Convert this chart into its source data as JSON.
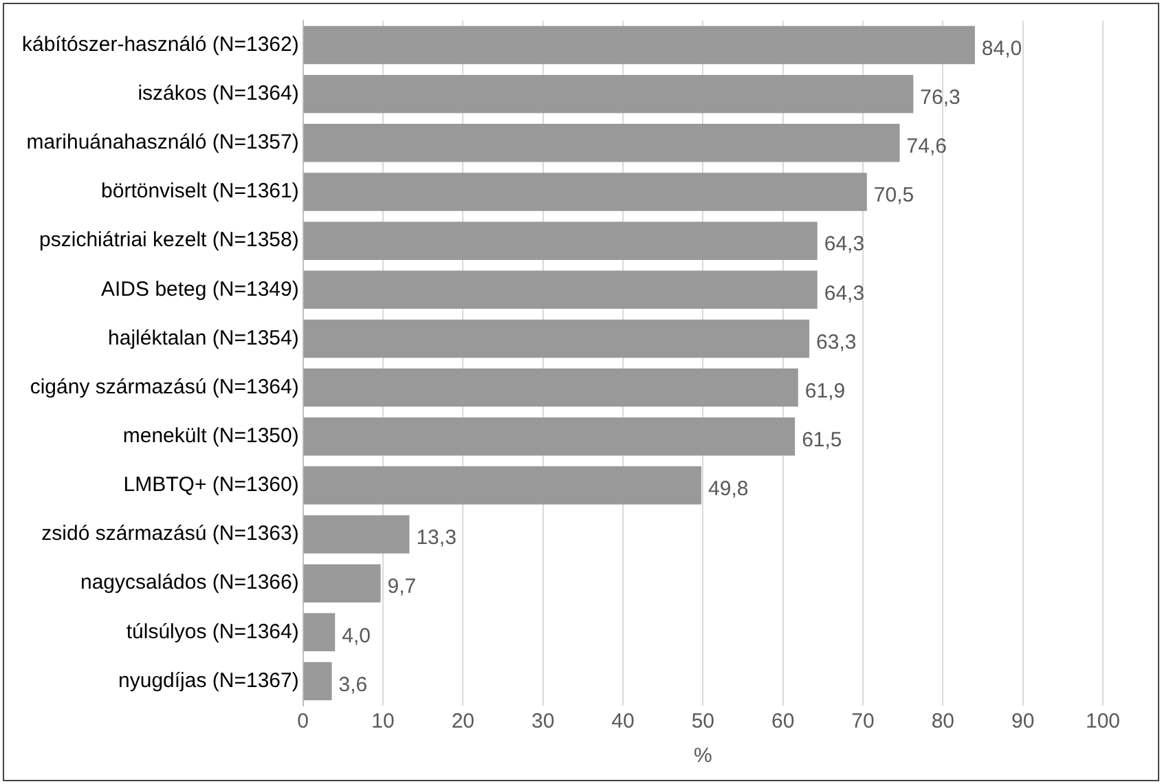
{
  "chart_data": {
    "type": "bar",
    "orientation": "horizontal",
    "xlabel": "%",
    "categories": [
      "kábítószer-használó (N=1362)",
      "iszákos (N=1364)",
      "marihuánahasználó (N=1357)",
      "börtönviselt (N=1361)",
      "pszichiátriai kezelt (N=1358)",
      "AIDS beteg (N=1349)",
      "hajléktalan (N=1354)",
      "cigány származású (N=1364)",
      "menekült (N=1350)",
      "LMBTQ+ (N=1360)",
      "zsidó származású (N=1363)",
      "nagycsaládos (N=1366)",
      "túlsúlyos (N=1364)",
      "nyugdíjas (N=1367)"
    ],
    "values": [
      84.0,
      76.3,
      74.6,
      70.5,
      64.3,
      64.3,
      63.3,
      61.9,
      61.5,
      49.8,
      13.3,
      9.7,
      4.0,
      3.6
    ],
    "value_labels": [
      "84,0",
      "76,3",
      "74,6",
      "70,5",
      "64,3",
      "64,3",
      "63,3",
      "61,9",
      "61,5",
      "49,8",
      "13,3",
      "9,7",
      "4,0",
      "3,6"
    ],
    "color": "#999999",
    "xlim": [
      0,
      100
    ],
    "xticks": [
      0,
      10,
      20,
      30,
      40,
      50,
      60,
      70,
      80,
      90,
      100
    ],
    "grid": "x",
    "legend": false
  }
}
